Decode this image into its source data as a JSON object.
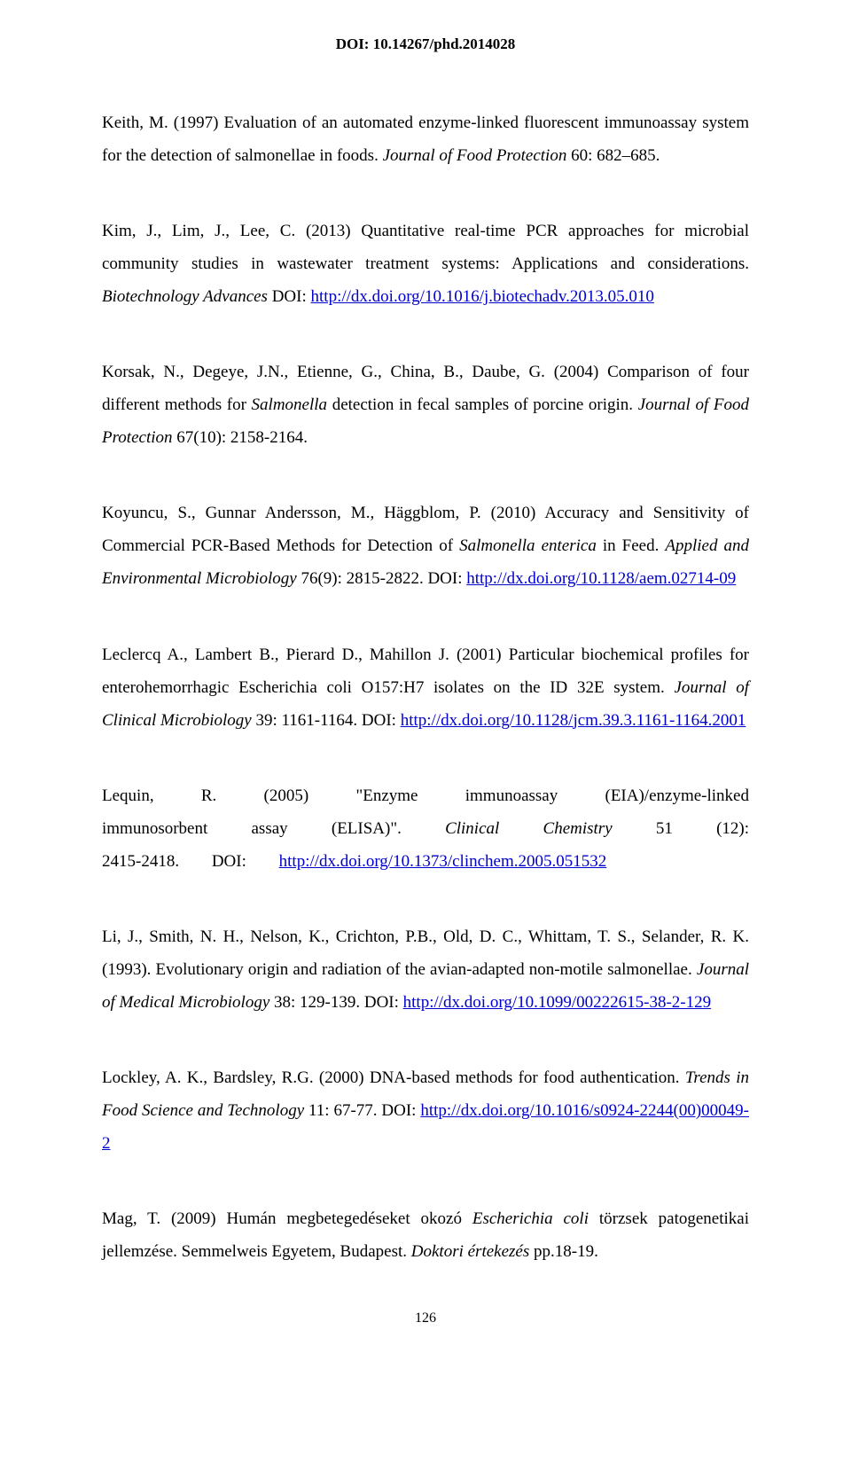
{
  "header": {
    "doi": "DOI: 10.14267/phd.2014028"
  },
  "refs": {
    "r1": {
      "pre": "Keith, M. (1997) Evaluation of an automated enzyme-linked fluorescent immunoassay system for the detection of salmonellae in foods. ",
      "journal": "Journal of Food Protection",
      "post": " 60: 682–685."
    },
    "r2": {
      "pre": "Kim, J., Lim, J., Lee, C. (2013) Quantitative real-time PCR approaches for microbial community studies in wastewater treatment systems: Applications and considerations. ",
      "journal": "Biotechnology Advances ",
      "doi_label": "DOI: ",
      "doi_link": "http://dx.doi.org/10.1016/j.biotechadv.2013.05.010"
    },
    "r3": {
      "pre": "Korsak, N., Degeye, J.N., Etienne, G., China, B., Daube, G. (2004) Comparison of four different methods for ",
      "italic1": "Salmonella",
      "mid": " detection in fecal samples of porcine origin. ",
      "journal": "Journal of Food Protection",
      "post": " 67(10): 2158-2164."
    },
    "r4": {
      "pre": "Koyuncu, S., Gunnar Andersson, M., Häggblom, P. (2010) Accuracy and Sensitivity of Commercial PCR-Based Methods for Detection of ",
      "italic1": "Salmonella enterica",
      "mid": " in Feed. ",
      "journal": "Applied and Environmental Microbiology",
      "post": " 76(9): 2815-2822. DOI: ",
      "doi_link": "http://dx.doi.org/10.1128/aem.02714-09"
    },
    "r5": {
      "pre": "Leclercq A., Lambert B., Pierard D., Mahillon J. (2001) Particular biochemical profiles for enterohemorrhagic Escherichia coli O157:H7 isolates on the ID 32E system. ",
      "journal": "Journal of Clinical Microbiology",
      "post": " 39: 1161-1164. DOI: ",
      "doi_link": "http://dx.doi.org/10.1128/jcm.39.3.1161-1164.2001"
    },
    "r6": {
      "pre": "Lequin, R. (2005) \"Enzyme immunoassay (EIA)/enzyme-linked immunosorbent assay (ELISA)\". ",
      "journal": "Clinical Chemistry",
      "post": " 51 (12): 2415-2418. DOI: ",
      "doi_link": "http://dx.doi.org/10.1373/clinchem.2005.051532"
    },
    "r7": {
      "pre": "Li, J., Smith, N. H., Nelson, K., Crichton, P.B., Old, D. C., Whittam, T. S., Selander, R. K. (1993). Evolutionary origin and radiation of the avian-adapted non-motile salmonellae. ",
      "journal": "Journal of Medical Microbiology",
      "post": " 38: 129-139. DOI: ",
      "doi_link": "http://dx.doi.org/10.1099/00222615-38-2-129"
    },
    "r8": {
      "pre": "Lockley, A. K., Bardsley, R.G. (2000) DNA-based methods for food authentication. ",
      "journal": "Trends in Food Science and Technology",
      "post": " 11: 67-77. DOI: ",
      "doi_link": "http://dx.doi.org/10.1016/s0924-2244(00)00049-2"
    },
    "r9": {
      "pre": "Mag, T. (2009) Humán megbetegedéseket okozó ",
      "italic1": "Escherichia coli",
      "mid": " törzsek patogenetikai jellemzése. Semmelweis Egyetem, Budapest. ",
      "italic2": "Doktori értekezés",
      "post": " pp.18-19."
    }
  },
  "footer": {
    "page_number": "126"
  }
}
